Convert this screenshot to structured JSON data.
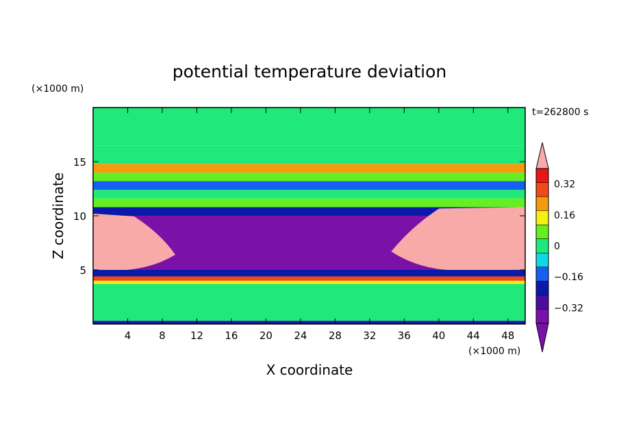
{
  "chart_data": {
    "type": "heatmap",
    "title": "potential temperature deviation",
    "xlabel": "X coordinate",
    "ylabel": "Z coordinate",
    "x_unit_label": "(×1000 m)",
    "y_unit_label": "(×1000 m)",
    "time_label": "t=262800 s",
    "xlim": [
      0,
      50
    ],
    "ylim": [
      0,
      20
    ],
    "x_ticks": [
      4,
      8,
      12,
      16,
      20,
      24,
      28,
      32,
      36,
      40,
      44,
      48
    ],
    "y_ticks": [
      5,
      10,
      15
    ],
    "colorbar": {
      "min": -0.4,
      "max": 0.4,
      "step": 0.08,
      "tick_values": [
        0.32,
        0.16,
        0,
        -0.16,
        -0.32
      ],
      "tick_labels": [
        "0.32",
        "0.16",
        "0",
        "−0.16",
        "−0.32"
      ],
      "colors": [
        "#7a12a8",
        "#4c0ea0",
        "#0a1aa8",
        "#1560f0",
        "#12d8e6",
        "#20e87a",
        "#66ee22",
        "#f6f010",
        "#f59a0c",
        "#f04a18",
        "#e81616"
      ],
      "over_color": "#f8aaa8",
      "under_color": "#7a12a8"
    },
    "bands": [
      {
        "z_range": [
          0,
          0.3
        ],
        "value": -0.2
      },
      {
        "z_range": [
          0.3,
          3.7
        ],
        "value": 0.02
      },
      {
        "z_range": [
          3.7,
          4.0
        ],
        "value": 0.14
      },
      {
        "z_range": [
          4.0,
          4.4
        ],
        "value": 0.3
      },
      {
        "z_range": [
          4.4,
          5.0
        ],
        "value": -0.25
      },
      {
        "z_range": [
          5.0,
          10.0
        ],
        "value": -0.38
      },
      {
        "z_range": [
          10.0,
          10.8
        ],
        "value": -0.2
      },
      {
        "z_range": [
          10.8,
          11.6
        ],
        "value": 0.1
      },
      {
        "z_range": [
          11.6,
          12.4
        ],
        "value": 0.02
      },
      {
        "z_range": [
          12.4,
          13.2
        ],
        "value": -0.18
      },
      {
        "z_range": [
          13.2,
          14.0
        ],
        "value": 0.05
      },
      {
        "z_range": [
          14.0,
          14.8
        ],
        "value": 0.2
      },
      {
        "z_range": [
          14.8,
          16.5
        ],
        "value": 0.0
      },
      {
        "z_range": [
          16.5,
          20.0
        ],
        "value": 0.03
      }
    ],
    "warm_anomaly_regions": [
      {
        "x_range": [
          0,
          9.5
        ],
        "z_range": [
          5.0,
          10.2
        ],
        "value": 0.45
      },
      {
        "x_range": [
          34.5,
          50
        ],
        "z_range": [
          5.0,
          10.8
        ],
        "value": 0.45
      }
    ],
    "cold_core": {
      "x_range": [
        10,
        34
      ],
      "z_range": [
        5.5,
        10.0
      ],
      "value": -0.45
    }
  }
}
